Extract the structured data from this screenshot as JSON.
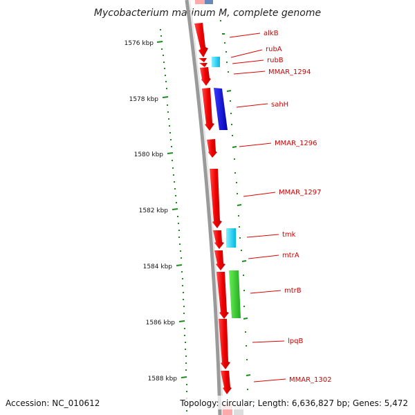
{
  "title": "Mycobacterium marinum M, complete genome",
  "footer": {
    "accession": "Accession: NC_010612",
    "summary": "Topology: circular; Length: 6,636,827 bp; Genes: 5,472"
  },
  "ticks": [
    {
      "label": "1576 kbp"
    },
    {
      "label": "1578 kbp"
    },
    {
      "label": "1580 kbp"
    },
    {
      "label": "1582 kbp"
    },
    {
      "label": "1584 kbp"
    },
    {
      "label": "1586 kbp"
    },
    {
      "label": "1588 kbp"
    }
  ],
  "genes": [
    {
      "name": "alkB"
    },
    {
      "name": "rubA"
    },
    {
      "name": "rubB"
    },
    {
      "name": "MMAR_1294"
    },
    {
      "name": "sahH"
    },
    {
      "name": "MMAR_1296"
    },
    {
      "name": "MMAR_1297"
    },
    {
      "name": "tmk"
    },
    {
      "name": "mtrA"
    },
    {
      "name": "mtrB"
    },
    {
      "name": "lpqB"
    },
    {
      "name": "MMAR_1302"
    }
  ],
  "colors": {
    "gene": "#ff0000",
    "rna": "#00ccff",
    "blue_feature": "#0000dd",
    "green_feature": "#33cc33",
    "backbone": "#888888",
    "label": "#cc0000",
    "tick": "#006600"
  }
}
